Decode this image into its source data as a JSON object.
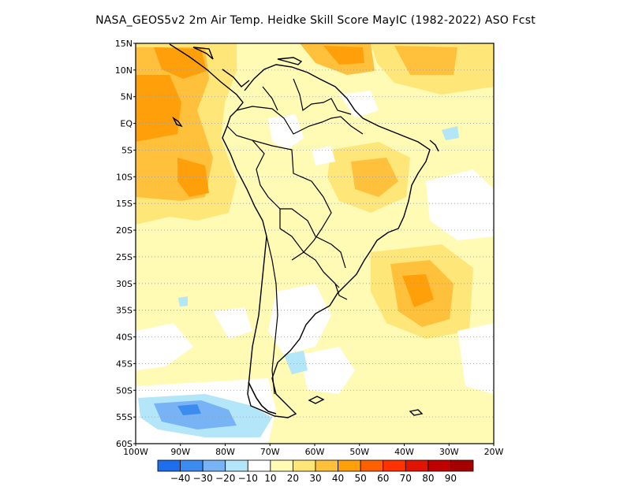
{
  "title": "NASA_GEOS5v2  2m Air Temp. Heidke Skill Score MayIC (1982-2022) ASO Fcst",
  "map": {
    "lat_labels": [
      "15N",
      "10N",
      "5N",
      "EQ",
      "5S",
      "10S",
      "15S",
      "20S",
      "25S",
      "30S",
      "35S",
      "40S",
      "45S",
      "50S",
      "55S",
      "60S"
    ],
    "lon_labels": [
      "100W",
      "90W",
      "80W",
      "70W",
      "60W",
      "50W",
      "40W",
      "30W",
      "20W"
    ],
    "lat_range": [
      -60,
      15
    ],
    "lon_range": [
      -100,
      -20
    ],
    "grid": "dotted"
  },
  "colorbar": {
    "labels": [
      "-40",
      "-30",
      "-20",
      "-10",
      "10",
      "20",
      "30",
      "40",
      "50",
      "60",
      "70",
      "80",
      "90"
    ],
    "colors": [
      "#1e6eeb",
      "#3c8cf0",
      "#78b4f5",
      "#b4e6fa",
      "#ffffff",
      "#fffab4",
      "#ffe678",
      "#ffc03c",
      "#ffa00a",
      "#ff6000",
      "#ff3200",
      "#e11400",
      "#c00000",
      "#a50000"
    ]
  },
  "colors": {
    "background": "#ffffff",
    "coast": "#000000",
    "grid": "#9a9a9a"
  }
}
